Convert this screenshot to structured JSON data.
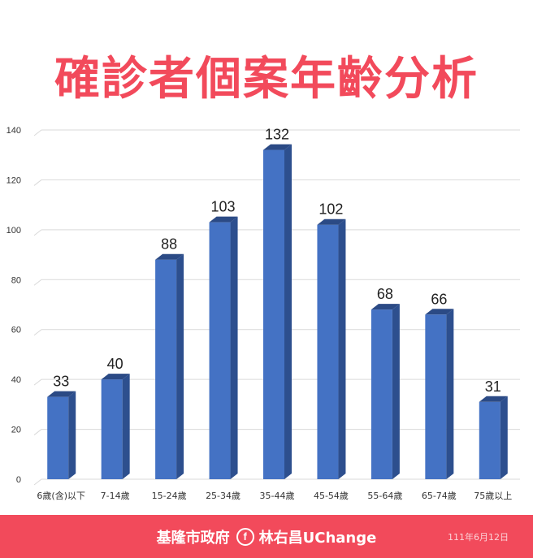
{
  "colors": {
    "title": "#f24a5b",
    "bar_front": "#4472c4",
    "bar_side": "#2d4f8e",
    "bar_top": "#2b4a85",
    "grid": "#d9d9d9",
    "axis_text": "#333333",
    "footer_bg": "#f24a5b"
  },
  "footer": {
    "org": "基隆市政府",
    "fb_icon": "f",
    "page_name": "林右昌UChange",
    "date": "111年6月12日"
  },
  "chart_data": {
    "type": "bar",
    "title": "確診者個案年齡分析",
    "categories": [
      "6歲(含)以下",
      "7-14歲",
      "15-24歲",
      "25-34歲",
      "35-44歲",
      "45-54歲",
      "55-64歲",
      "65-74歲",
      "75歲以上"
    ],
    "values": [
      33,
      40,
      88,
      103,
      132,
      102,
      68,
      66,
      31
    ],
    "ylim": [
      0,
      140
    ],
    "yticks": [
      0,
      20,
      40,
      60,
      80,
      100,
      120,
      140
    ],
    "grid": true,
    "style": "3d-column"
  }
}
